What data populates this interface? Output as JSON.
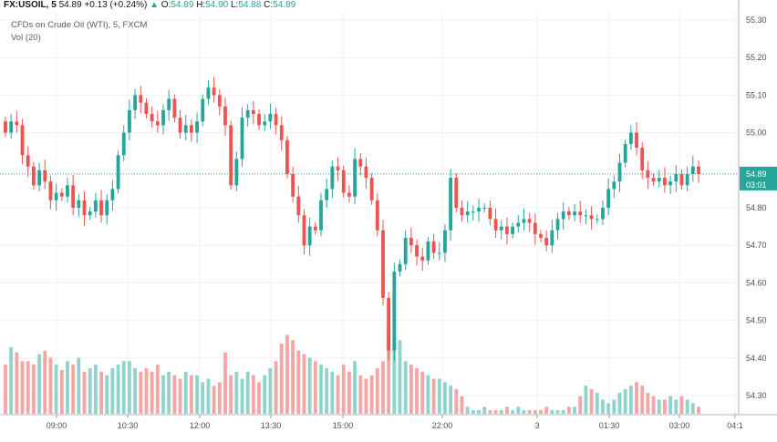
{
  "header": {
    "symbol": "FX:USOIL, 5",
    "last": "54.89",
    "change": "+0.13 (+0.24%)",
    "open_label": "O:",
    "open": "54.89",
    "high_label": "H:",
    "high": "54.90",
    "low_label": "L:",
    "low": "54.88",
    "close_label": "C:",
    "close": "54.89",
    "study_title": "CFDs on Crude Oil (WTI), 5, FXCM",
    "vol_label": "Vol (20)",
    "up_arrow": "▲"
  },
  "colors": {
    "up": "#26a69a",
    "down": "#ef5350",
    "vol_up": "#8fd3cb",
    "vol_down": "#f4a6a4",
    "grid": "#eef0f3",
    "price_line": "#26a69a",
    "last_tag": "#26a69a",
    "axis_tag": "#26a69a"
  },
  "chart_data": {
    "type": "candlestick",
    "y_ticks": [
      "55.30",
      "55.20",
      "55.10",
      "55.00",
      "54.90",
      "54.80",
      "54.70",
      "54.60",
      "54.50",
      "54.40",
      "54.30"
    ],
    "ylim": [
      54.25,
      55.33
    ],
    "x_ticks": [
      "09:00",
      "10:30",
      "12:00",
      "13:30",
      "15:00",
      "22:00",
      "3",
      "01:30",
      "03:00",
      "04:1"
    ],
    "last_price_label": "54.89",
    "countdown_label": "03:01",
    "last_price": 54.89,
    "close_series": [
      55.0,
      55.03,
      55.02,
      54.94,
      54.91,
      54.86,
      54.9,
      54.87,
      54.82,
      54.84,
      54.83,
      54.86,
      54.8,
      54.82,
      54.78,
      54.79,
      54.82,
      54.78,
      54.82,
      54.85,
      54.94,
      55.0,
      55.06,
      55.1,
      55.08,
      55.05,
      55.03,
      55.02,
      55.06,
      55.09,
      55.04,
      55.0,
      55.02,
      55.0,
      55.03,
      55.09,
      55.12,
      55.1,
      55.07,
      55.02,
      54.86,
      54.93,
      55.04,
      55.06,
      55.05,
      55.02,
      55.03,
      55.05,
      55.02,
      54.98,
      54.89,
      54.83,
      54.78,
      54.7,
      54.75,
      54.74,
      54.82,
      54.85,
      54.91,
      54.9,
      54.84,
      54.83,
      54.93,
      54.91,
      54.88,
      54.82,
      54.74,
      54.56,
      54.42,
      54.63,
      54.65,
      54.72,
      54.7,
      54.67,
      54.66,
      54.71,
      54.68,
      54.68,
      54.74,
      54.88,
      54.8,
      54.78,
      54.79,
      54.79,
      54.8,
      54.8,
      54.77,
      54.74,
      54.75,
      54.73,
      54.75,
      54.76,
      54.77,
      54.76,
      54.73,
      54.72,
      54.7,
      54.74,
      54.77,
      54.79,
      54.78,
      54.79,
      54.78,
      54.78,
      54.77,
      54.77,
      54.8,
      54.85,
      54.87,
      54.92,
      54.97,
      55.0,
      54.96,
      54.9,
      54.88,
      54.87,
      54.88,
      54.86,
      54.87,
      54.89,
      54.86,
      54.89,
      54.91,
      54.89
    ],
    "volume_series": [
      28,
      38,
      35,
      30,
      30,
      28,
      34,
      36,
      32,
      28,
      25,
      30,
      28,
      32,
      24,
      26,
      28,
      24,
      22,
      26,
      28,
      30,
      30,
      26,
      24,
      26,
      24,
      28,
      22,
      24,
      22,
      20,
      24,
      22,
      22,
      18,
      20,
      16,
      18,
      35,
      22,
      24,
      20,
      24,
      22,
      18,
      22,
      26,
      30,
      40,
      45,
      42,
      36,
      34,
      32,
      30,
      28,
      26,
      24,
      22,
      28,
      24,
      30,
      22,
      20,
      22,
      26,
      30,
      52,
      44,
      42,
      30,
      28,
      26,
      24,
      22,
      20,
      20,
      18,
      16,
      14,
      10,
      4,
      2,
      2,
      4,
      2,
      2,
      2,
      4,
      2,
      4,
      2,
      2,
      2,
      2,
      4,
      2,
      2,
      2,
      4,
      4,
      10,
      16,
      14,
      12,
      8,
      6,
      8,
      12,
      14,
      16,
      18,
      16,
      12,
      10,
      8,
      8,
      10,
      8,
      10,
      8,
      6,
      4
    ]
  }
}
